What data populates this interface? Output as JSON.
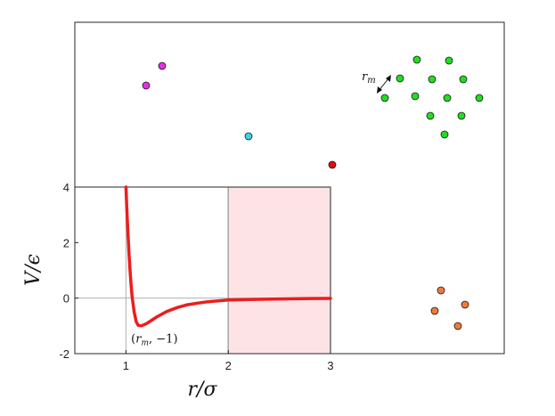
{
  "chart_data": {
    "type": "line",
    "title": "",
    "xlabel": "r/σ",
    "ylabel": "V/ϵ",
    "xlim": [
      0.5,
      3.0
    ],
    "ylim": [
      -2,
      4
    ],
    "x_ticks": [
      {
        "value": 1,
        "label": "1"
      },
      {
        "value": 2,
        "label": "2"
      },
      {
        "value": 3,
        "label": "3"
      }
    ],
    "y_ticks": [
      {
        "value": -2,
        "label": "-2"
      },
      {
        "value": 0,
        "label": "0"
      },
      {
        "value": 2,
        "label": "2"
      },
      {
        "value": 4,
        "label": "4"
      }
    ],
    "grid": false,
    "series": [
      {
        "color": "#ee1c1c",
        "x": [
          1.0,
          1.01,
          1.02,
          1.03,
          1.04,
          1.05,
          1.06,
          1.08,
          1.1,
          1.12,
          1.15,
          1.2,
          1.25,
          1.3,
          1.4,
          1.5,
          1.6,
          1.7,
          1.8,
          2.0,
          2.2,
          2.5,
          2.8,
          3.0
        ],
        "y": [
          4.0,
          3.1,
          2.3,
          1.6,
          1.0,
          0.5,
          0.05,
          -0.5,
          -0.85,
          -0.98,
          -1.0,
          -0.92,
          -0.8,
          -0.68,
          -0.48,
          -0.34,
          -0.24,
          -0.18,
          -0.13,
          -0.07,
          -0.05,
          -0.03,
          -0.015,
          -0.01
        ]
      }
    ],
    "reference_lines": {
      "horizontal_y": 0,
      "vertical_x": [
        1.0,
        2.0
      ]
    },
    "shaded_region": {
      "x": [
        2.0,
        3.0
      ],
      "color": "#fde3e5"
    },
    "annotation": {
      "x": 1.12,
      "y": -1.5,
      "text_symbol": "r",
      "text_subscript": "m",
      "text_rest": ", −1)",
      "text_open": "("
    },
    "particles": {
      "label_symbol": "r",
      "label_subscript": "m",
      "groups": [
        {
          "name": "magenta",
          "color": "#e62ee6",
          "points": [
            [
              182,
              74
            ],
            [
              164,
              96
            ]
          ]
        },
        {
          "name": "cyan",
          "color": "#38d3ea",
          "points": [
            [
              279,
              153
            ]
          ]
        },
        {
          "name": "red",
          "color": "#dd0d0d",
          "points": [
            [
              373,
              185
            ]
          ]
        },
        {
          "name": "green",
          "color": "#22dd22",
          "points": [
            [
              468,
              67
            ],
            [
              504,
              68
            ],
            [
              449,
              88
            ],
            [
              485,
              89
            ],
            [
              520,
              89
            ],
            [
              432,
              110
            ],
            [
              466,
              108
            ],
            [
              502,
              110
            ],
            [
              538,
              110
            ],
            [
              483,
              130
            ],
            [
              518,
              130
            ],
            [
              499,
              151
            ]
          ]
        },
        {
          "name": "orange",
          "color": "#f07a3a",
          "points": [
            [
              495,
              326
            ],
            [
              488,
              349
            ],
            [
              522,
              342
            ],
            [
              514,
              366
            ]
          ]
        }
      ]
    }
  }
}
